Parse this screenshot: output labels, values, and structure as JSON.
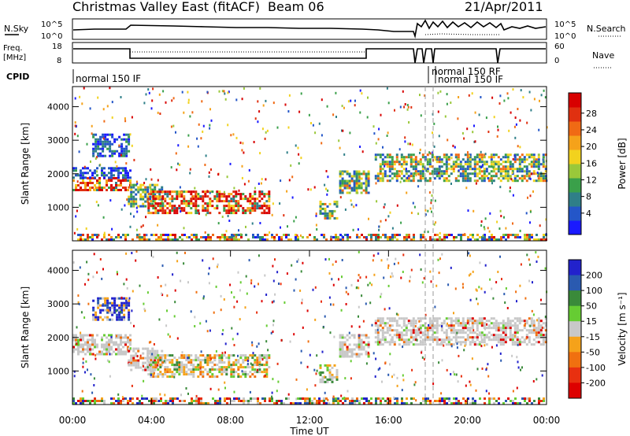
{
  "header": {
    "title": "Christmas Valley East (fitACF)",
    "beam": "Beam 06",
    "date": "21/Apr/2011"
  },
  "top_panels": {
    "sky_label": "N.Sky",
    "search_label": "N.Search",
    "count_ticks": [
      "10^5",
      "10^0"
    ],
    "freq_label": "Freq.",
    "freq_unit": "[MHz]",
    "freq_ticks": [
      "18",
      "8"
    ],
    "nave_label": "Nave",
    "nave_ticks": [
      "60",
      "0"
    ],
    "cpid_label": "CPID",
    "cpid_modes": [
      {
        "name": "normal 150 IF",
        "start_hour": 0,
        "end_hour": 17.6
      },
      {
        "name": "normal 150 RF",
        "start_hour": 17.6,
        "end_hour": 18.0
      },
      {
        "name": "normal 150 IF",
        "start_hour": 18.0,
        "end_hour": 24
      }
    ]
  },
  "chart_data": [
    {
      "type": "heatmap",
      "name": "power-panel",
      "xlabel": "",
      "ylabel": "Slant Range [km]",
      "xlim": [
        0,
        24
      ],
      "ylim": [
        0,
        4600
      ],
      "y_ticks": [
        1000,
        2000,
        3000,
        4000
      ],
      "colorbar": {
        "label": "Power [dB]",
        "ticks": [
          "4",
          "8",
          "12",
          "16",
          "20",
          "24",
          "28"
        ],
        "colors": [
          "#1a1aff",
          "#2456c8",
          "#2f7f88",
          "#3aa04a",
          "#9ac83a",
          "#f2d21e",
          "#f5a21a",
          "#f06a14",
          "#e03010",
          "#d80000"
        ]
      },
      "echo_regions": [
        {
          "t0": 0.0,
          "t1": 2.9,
          "r0": 1500,
          "r1": 1900,
          "level": "strong"
        },
        {
          "t0": 0.0,
          "t1": 2.9,
          "r0": 1900,
          "r1": 2200,
          "level": "weak"
        },
        {
          "t0": 1.0,
          "t1": 2.8,
          "r0": 2500,
          "r1": 3200,
          "level": "weak"
        },
        {
          "t0": 2.8,
          "t1": 4.5,
          "r0": 1000,
          "r1": 1700,
          "level": "moderate"
        },
        {
          "t0": 3.8,
          "t1": 10.0,
          "r0": 800,
          "r1": 1500,
          "level": "strong"
        },
        {
          "t0": 12.5,
          "t1": 13.4,
          "r0": 700,
          "r1": 1200,
          "level": "moderate"
        },
        {
          "t0": 13.5,
          "t1": 15.0,
          "r0": 1400,
          "r1": 2100,
          "level": "moderate"
        },
        {
          "t0": 15.3,
          "t1": 24.0,
          "r0": 1800,
          "r1": 2600,
          "level": "moderate"
        }
      ]
    },
    {
      "type": "heatmap",
      "name": "velocity-panel",
      "xlabel": "Time UT",
      "ylabel": "Slant Range [km]",
      "xlim": [
        0,
        24
      ],
      "ylim": [
        0,
        4600
      ],
      "y_ticks": [
        1000,
        2000,
        3000,
        4000
      ],
      "x_ticks": [
        "00:00",
        "04:00",
        "08:00",
        "12:00",
        "16:00",
        "20:00",
        "00:00"
      ],
      "colorbar": {
        "label": "Velocity [m s⁻¹]",
        "ticks": [
          "200",
          "100",
          "50",
          "15",
          "-15",
          "-50",
          "-100",
          "-200"
        ],
        "colors": [
          "#2222cc",
          "#2a5ab0",
          "#3a8a3a",
          "#66cc33",
          "#c8c8c8",
          "#f5a21a",
          "#f07010",
          "#e83010",
          "#dd0000"
        ]
      },
      "echo_regions": [
        {
          "t0": 0.0,
          "t1": 2.9,
          "r0": 1500,
          "r1": 2100,
          "level": "ground"
        },
        {
          "t0": 1.0,
          "t1": 2.8,
          "r0": 2500,
          "r1": 3200,
          "level": "positive"
        },
        {
          "t0": 2.8,
          "t1": 4.5,
          "r0": 1000,
          "r1": 1700,
          "level": "ground"
        },
        {
          "t0": 3.8,
          "t1": 10.0,
          "r0": 800,
          "r1": 1500,
          "level": "mixed"
        },
        {
          "t0": 12.5,
          "t1": 13.4,
          "r0": 700,
          "r1": 1200,
          "level": "mixed"
        },
        {
          "t0": 13.5,
          "t1": 15.0,
          "r0": 1400,
          "r1": 2100,
          "level": "ground"
        },
        {
          "t0": 15.3,
          "t1": 24.0,
          "r0": 1800,
          "r1": 2600,
          "level": "ground"
        }
      ]
    }
  ]
}
